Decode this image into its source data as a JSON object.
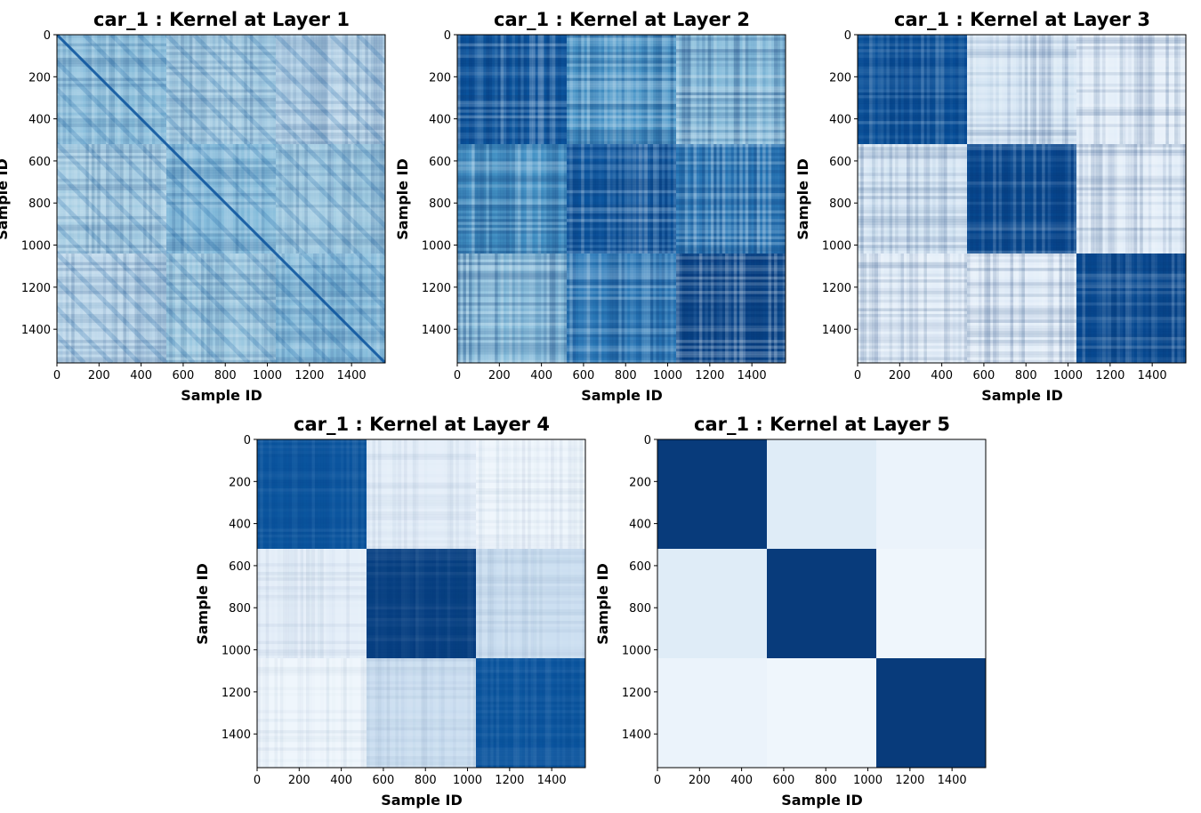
{
  "chart_data": [
    {
      "type": "heatmap",
      "title": "car_1 : Kernel at Layer 1",
      "xlabel": "Sample ID",
      "ylabel": "Sample ID",
      "xlim": [
        0,
        1560
      ],
      "ylim": [
        1560,
        0
      ],
      "xticks": [
        "0",
        "200",
        "400",
        "600",
        "800",
        "1000",
        "1200",
        "1400"
      ],
      "yticks": [
        "0",
        "200",
        "400",
        "600",
        "800",
        "1000",
        "1200",
        "1400"
      ],
      "colormap": "Blues",
      "block_boundaries": [
        0,
        520,
        1040,
        1560
      ],
      "block_intensity": [
        [
          0.42,
          0.36,
          0.3
        ],
        [
          0.36,
          0.44,
          0.38
        ],
        [
          0.3,
          0.38,
          0.44
        ]
      ],
      "texture": "fine",
      "diagonal_highlight": true
    },
    {
      "type": "heatmap",
      "title": "car_1 : Kernel at Layer 2",
      "xlabel": "Sample ID",
      "ylabel": "Sample ID",
      "xlim": [
        0,
        1560
      ],
      "ylim": [
        1560,
        0
      ],
      "xticks": [
        "0",
        "200",
        "400",
        "600",
        "800",
        "1000",
        "1200",
        "1400"
      ],
      "yticks": [
        "0",
        "200",
        "400",
        "600",
        "800",
        "1000",
        "1200",
        "1400"
      ],
      "colormap": "Blues",
      "block_boundaries": [
        0,
        520,
        1040,
        1560
      ],
      "block_intensity": [
        [
          0.86,
          0.62,
          0.44
        ],
        [
          0.62,
          0.86,
          0.72
        ],
        [
          0.44,
          0.72,
          0.92
        ]
      ],
      "texture": "strong"
    },
    {
      "type": "heatmap",
      "title": "car_1 : Kernel at Layer 3",
      "xlabel": "Sample ID",
      "ylabel": "Sample ID",
      "xlim": [
        0,
        1560
      ],
      "ylim": [
        1560,
        0
      ],
      "xticks": [
        "0",
        "200",
        "400",
        "600",
        "800",
        "1000",
        "1200",
        "1400"
      ],
      "yticks": [
        "0",
        "200",
        "400",
        "600",
        "800",
        "1000",
        "1200",
        "1400"
      ],
      "colormap": "Blues",
      "block_boundaries": [
        0,
        520,
        1040,
        1560
      ],
      "block_intensity": [
        [
          0.88,
          0.16,
          0.1
        ],
        [
          0.16,
          0.9,
          0.1
        ],
        [
          0.1,
          0.1,
          0.9
        ]
      ],
      "texture": "medium"
    },
    {
      "type": "heatmap",
      "title": "car_1 : Kernel at Layer 4",
      "xlabel": "Sample ID",
      "ylabel": "Sample ID",
      "xlim": [
        0,
        1560
      ],
      "ylim": [
        1560,
        0
      ],
      "xticks": [
        "0",
        "200",
        "400",
        "600",
        "800",
        "1000",
        "1200",
        "1400"
      ],
      "yticks": [
        "0",
        "200",
        "400",
        "600",
        "800",
        "1000",
        "1200",
        "1400"
      ],
      "colormap": "Blues",
      "block_boundaries": [
        0,
        520,
        1040,
        1560
      ],
      "block_intensity": [
        [
          0.86,
          0.09,
          0.04
        ],
        [
          0.09,
          0.94,
          0.22
        ],
        [
          0.04,
          0.22,
          0.86
        ]
      ],
      "texture": "light"
    },
    {
      "type": "heatmap",
      "title": "car_1 : Kernel at Layer 5",
      "xlabel": "Sample ID",
      "ylabel": "Sample ID",
      "xlim": [
        0,
        1560
      ],
      "ylim": [
        1560,
        0
      ],
      "xticks": [
        "0",
        "200",
        "400",
        "600",
        "800",
        "1000",
        "1200",
        "1400"
      ],
      "yticks": [
        "0",
        "200",
        "400",
        "600",
        "800",
        "1000",
        "1200",
        "1400"
      ],
      "colormap": "Blues",
      "block_boundaries": [
        0,
        520,
        1040,
        1560
      ],
      "block_intensity": [
        [
          0.96,
          0.12,
          0.06
        ],
        [
          0.12,
          0.96,
          0.04
        ],
        [
          0.06,
          0.04,
          0.96
        ]
      ],
      "texture": "none"
    }
  ]
}
